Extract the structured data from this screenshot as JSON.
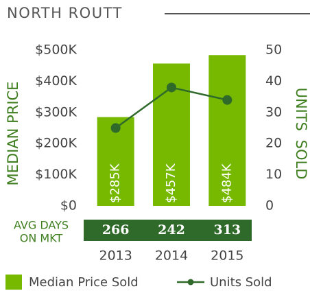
{
  "chart_data": {
    "type": "bar",
    "title": "NORTH ROUTT",
    "categories": [
      "2013",
      "2014",
      "2015"
    ],
    "series": [
      {
        "name": "Median Price Sold",
        "type": "bar",
        "color": "#76b900",
        "values": [
          285000,
          457000,
          484000
        ],
        "value_labels": [
          "$285K",
          "$457K",
          "$484K"
        ]
      },
      {
        "name": "Units Sold",
        "type": "line",
        "axis": "y2",
        "color": "#2f6a2a",
        "values": [
          25,
          38,
          34
        ]
      }
    ],
    "ylabel": "MEDIAN PRICE",
    "y2label": "UNITS SOLD",
    "ylim": [
      0,
      500000
    ],
    "yticks": [
      {
        "value": 0,
        "label": "$0"
      },
      {
        "value": 100000,
        "label": "$100K"
      },
      {
        "value": 200000,
        "label": "$200K"
      },
      {
        "value": 300000,
        "label": "$300K"
      },
      {
        "value": 400000,
        "label": "$400K"
      },
      {
        "value": 500000,
        "label": "$500K"
      }
    ],
    "y2lim": [
      0,
      50
    ],
    "y2ticks": [
      0,
      10,
      20,
      30,
      40,
      50
    ],
    "table": {
      "label_lines": [
        "AVG DAYS",
        "ON MKT"
      ],
      "values": [
        266,
        242,
        313
      ]
    }
  }
}
